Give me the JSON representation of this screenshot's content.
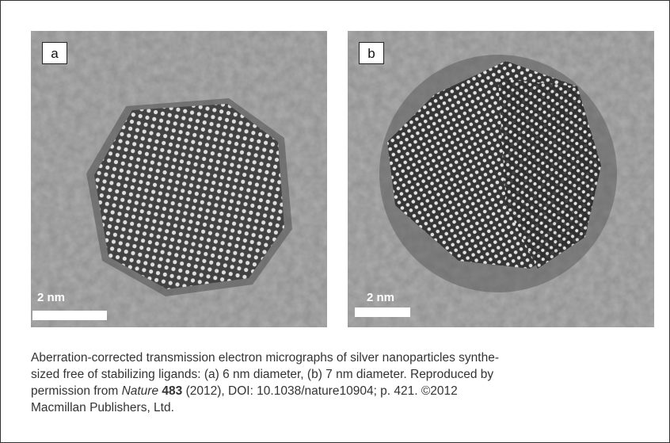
{
  "panels": [
    {
      "label": "a",
      "scale_bar": "2 nm"
    },
    {
      "label": "b",
      "scale_bar": "2 nm"
    }
  ],
  "caption": {
    "line1": "Aberration-corrected transmission electron micrographs of silver nanoparticles synthe-",
    "line2": "sized free of stabilizing ligands: (a) 6 nm diameter, (b) 7 nm diameter. Reproduced by",
    "line3_start": "permission from",
    "journal": "Nature",
    "volume": "483",
    "line3_end": "(2012), DOI: 10.1038/nature10904; p. 421. ©2012",
    "line4": "Macmillan Publishers, Ltd."
  }
}
